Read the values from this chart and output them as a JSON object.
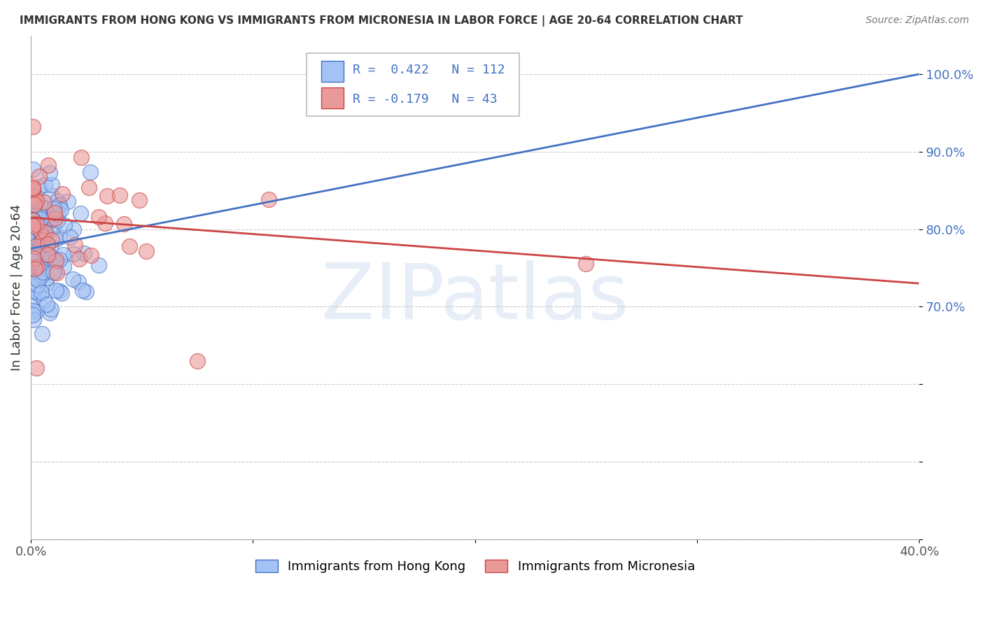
{
  "title": "IMMIGRANTS FROM HONG KONG VS IMMIGRANTS FROM MICRONESIA IN LABOR FORCE | AGE 20-64 CORRELATION CHART",
  "source": "Source: ZipAtlas.com",
  "ylabel": "In Labor Force | Age 20-64",
  "xlim": [
    0.0,
    0.4
  ],
  "ylim": [
    0.4,
    1.05
  ],
  "hk_color": "#a4c2f4",
  "hk_edge_color": "#4472c4",
  "mic_color": "#ea9999",
  "mic_edge_color": "#cc4444",
  "hk_line_color": "#4472c4",
  "mic_line_color": "#cc4444",
  "R_hk": 0.422,
  "N_hk": 112,
  "R_mic": -0.179,
  "N_mic": 43,
  "watermark": "ZIPatlas",
  "legend_hk": "Immigrants from Hong Kong",
  "legend_mic": "Immigrants from Micronesia",
  "hk_trend_x0": 0.0,
  "hk_trend_x1": 0.4,
  "hk_trend_y0": 0.775,
  "hk_trend_y1": 1.0,
  "mic_trend_x0": 0.0,
  "mic_trend_x1": 0.4,
  "mic_trend_y0": 0.815,
  "mic_trend_y1": 0.73,
  "ytick_positions": [
    0.4,
    0.5,
    0.6,
    0.7,
    0.8,
    0.9,
    1.0
  ],
  "ytick_labels": [
    "",
    "",
    "",
    "70.0%",
    "80.0%",
    "90.0%",
    "100.0%"
  ],
  "xtick_positions": [
    0.0,
    0.1,
    0.2,
    0.3,
    0.4
  ],
  "xtick_labels": [
    "0.0%",
    "",
    "",
    "",
    "40.0%"
  ],
  "title_fontsize": 11,
  "source_fontsize": 10,
  "tick_fontsize": 13,
  "ylabel_fontsize": 13
}
